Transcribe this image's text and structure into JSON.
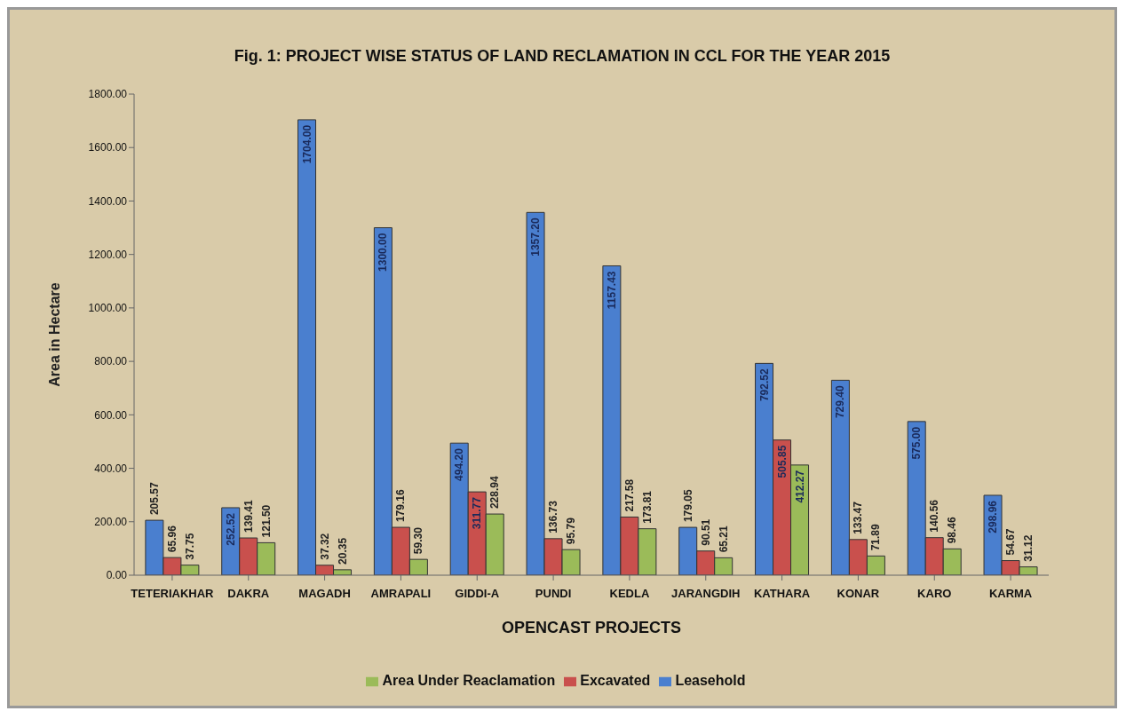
{
  "chart_data": {
    "type": "bar",
    "title": "Fig. 1: PROJECT WISE STATUS OF LAND RECLAMATION IN CCL FOR THE YEAR 2015",
    "xlabel": "OPENCAST PROJECTS",
    "ylabel": "Area in Hectare",
    "categories": [
      "TETERIAKHAR",
      "DAKRA",
      "MAGADH",
      "AMRAPALI",
      "GIDDI-A",
      "PUNDI",
      "KEDLA",
      "JARANGDIH",
      "KATHARA",
      "KONAR",
      "KARO",
      "KARMA"
    ],
    "series": [
      {
        "name": "Leasehold",
        "color": "#4a7fcf",
        "values": [
          205.57,
          252.52,
          1704.0,
          1300.0,
          494.2,
          1357.2,
          1157.43,
          179.05,
          792.52,
          729.4,
          575.0,
          298.96
        ],
        "value_labels": [
          "205.57",
          "252.52",
          "1704.00",
          "1300.00",
          "494.20",
          "1357.20",
          "1157.43",
          "179.05",
          "792.52",
          "729.40",
          "575.00",
          "298.96"
        ]
      },
      {
        "name": "Excavated",
        "color": "#c9504d",
        "values": [
          65.96,
          139.41,
          37.32,
          179.16,
          311.77,
          136.73,
          217.58,
          90.51,
          505.85,
          133.47,
          140.56,
          54.67
        ],
        "value_labels": [
          "65.96",
          "139.41",
          "37.32",
          "179.16",
          "311.77",
          "136.73",
          "217.58",
          "90.51",
          "505.85",
          "133.47",
          "140.56",
          "54.67"
        ]
      },
      {
        "name": "Area Under Reaclamation",
        "color": "#9bbb59",
        "values": [
          37.75,
          121.5,
          20.35,
          59.3,
          228.94,
          95.79,
          173.81,
          65.21,
          412.27,
          71.89,
          98.46,
          31.12
        ],
        "value_labels": [
          "37.75",
          "121.50",
          "20.35",
          "59.30",
          "228.94",
          "95.79",
          "173.81",
          "65.21",
          "412.27",
          "71.89",
          "98.46",
          "31.12"
        ]
      }
    ],
    "ylim": [
      0,
      1800
    ],
    "yticks": [
      {
        "value": 0,
        "label": "0.00"
      },
      {
        "value": 200,
        "label": "200.00"
      },
      {
        "value": 400,
        "label": "400.00"
      },
      {
        "value": 600,
        "label": "600.00"
      },
      {
        "value": 800,
        "label": "800.00"
      },
      {
        "value": 1000,
        "label": "1000.00"
      },
      {
        "value": 1200,
        "label": "1200.00"
      },
      {
        "value": 1400,
        "label": "1400.00"
      },
      {
        "value": 1600,
        "label": "1600.00"
      },
      {
        "value": 1800,
        "label": "1800.00"
      }
    ],
    "legend": "bottom"
  }
}
